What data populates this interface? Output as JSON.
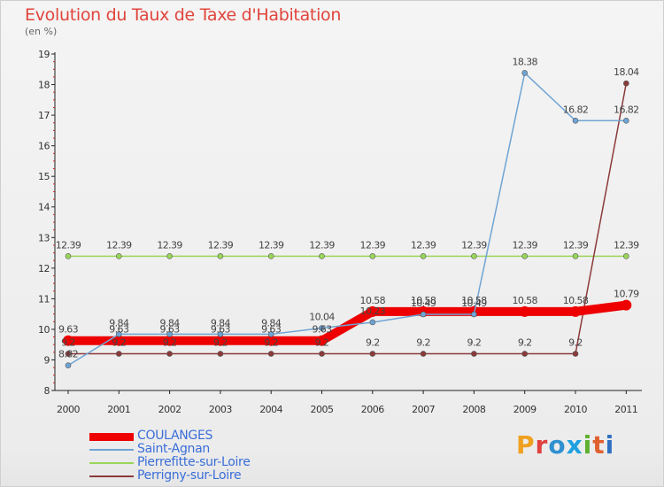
{
  "title": "Evolution du Taux de Taxe d'Habitation",
  "subtitle": "(en %)",
  "logo": "Proxiti",
  "colors": {
    "title": "#e0453c",
    "legend_text": "#3a6ed8",
    "axis": "#222222",
    "grid": "#d9d9d9"
  },
  "chart_data": {
    "type": "line",
    "title": "Evolution du Taux de Taxe d'Habitation",
    "subtitle": "(en %)",
    "x": [
      "2000",
      "2001",
      "2002",
      "2003",
      "2004",
      "2005",
      "2006",
      "2007",
      "2008",
      "2009",
      "2010",
      "2011"
    ],
    "ylim": [
      8,
      19
    ],
    "yticks": [
      "8",
      "9",
      "10",
      "11",
      "12",
      "13",
      "14",
      "15",
      "16",
      "17",
      "18",
      "19"
    ],
    "grid": false,
    "legend_position": "bottom-left",
    "series": [
      {
        "name": "COULANGES",
        "color": "#ee0000",
        "values": [
          9.63,
          9.63,
          9.63,
          9.63,
          9.63,
          9.63,
          10.58,
          10.58,
          10.58,
          10.58,
          10.58,
          10.79
        ],
        "labels": [
          "9.63",
          "9.63",
          "9.63",
          "9.63",
          "9.63",
          "9.63",
          "10.58",
          "10.58",
          "10.58",
          "10.58",
          "10.58",
          "10.79"
        ]
      },
      {
        "name": "Saint-Agnan",
        "color": "#6fa4d4",
        "values": [
          8.82,
          9.84,
          9.84,
          9.84,
          9.84,
          10.04,
          10.23,
          10.49,
          10.49,
          18.38,
          16.82,
          16.82
        ],
        "labels": [
          "8.82",
          "9.84",
          "9.84",
          "9.84",
          "9.84",
          "10.04",
          "10.23",
          "10.49",
          "10.49",
          "18.38",
          "16.82",
          "16.82"
        ]
      },
      {
        "name": "Pierrefitte-sur-Loire",
        "color": "#9ad65a",
        "values": [
          12.39,
          12.39,
          12.39,
          12.39,
          12.39,
          12.39,
          12.39,
          12.39,
          12.39,
          12.39,
          12.39,
          12.39
        ],
        "labels": [
          "12.39",
          "12.39",
          "12.39",
          "12.39",
          "12.39",
          "12.39",
          "12.39",
          "12.39",
          "12.39",
          "12.39",
          "12.39",
          "12.39"
        ]
      },
      {
        "name": "Perrigny-sur-Loire",
        "color": "#8b3a3a",
        "values": [
          9.2,
          9.2,
          9.2,
          9.2,
          9.2,
          9.2,
          9.2,
          9.2,
          9.2,
          9.2,
          9.2,
          18.04
        ],
        "labels": [
          "9.2",
          "9.2",
          "9.2",
          "9.2",
          "9.2",
          "9.2",
          "9.2",
          "9.2",
          "9.2",
          "9.2",
          "9.2",
          "18.04"
        ]
      }
    ]
  }
}
